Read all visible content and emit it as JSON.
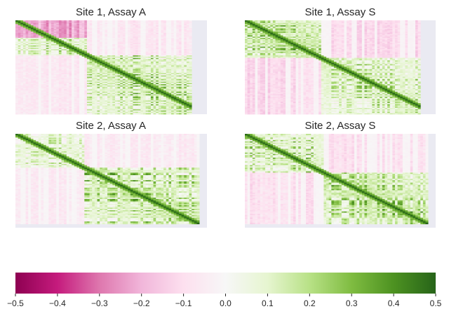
{
  "chart_data": {
    "type": "heatmap",
    "colormap": "PiYG",
    "panels": [
      {
        "title": "Site 1, Assay A",
        "size": 75,
        "blocks": [
          [
            0,
            27
          ],
          [
            28,
            75
          ]
        ],
        "block_strength": [
          0.18,
          0.25
        ],
        "cross_strength": -0.06,
        "missing_cols": [
          69,
          70,
          71,
          72,
          73,
          74
        ],
        "missing_rows_bottom": [],
        "features": "strong negative band rows 0-13, positive diagonal, pink lower band"
      },
      {
        "title": "Site 1, Assay S",
        "size": 75,
        "blocks": [
          [
            0,
            29
          ],
          [
            30,
            75
          ]
        ],
        "block_strength": [
          0.3,
          0.22
        ],
        "cross_strength": -0.1,
        "missing_cols": [
          69,
          70,
          71,
          72,
          73,
          74
        ],
        "missing_rows_bottom": [],
        "features": "dark olive/magenta checker in upper-left block, strong diagonal"
      },
      {
        "title": "Site 2, Assay A",
        "size": 75,
        "blocks": [
          [
            0,
            26
          ],
          [
            27,
            72
          ]
        ],
        "block_strength": [
          0.15,
          0.28
        ],
        "cross_strength": -0.05,
        "missing_cols": [
          72,
          73,
          74
        ],
        "missing_rows_bottom": [
          72,
          73,
          74
        ],
        "features": "pink stripes top-left, olive block lower-right"
      },
      {
        "title": "Site 2, Assay S",
        "size": 75,
        "blocks": [
          [
            0,
            30
          ],
          [
            31,
            72
          ]
        ],
        "block_strength": [
          0.2,
          0.3
        ],
        "cross_strength": -0.08,
        "missing_cols": [
          72,
          73,
          74
        ],
        "missing_rows_bottom": [
          72,
          73,
          74
        ],
        "features": "pink top-left block, olive lower-right block, dark diagonal"
      }
    ],
    "colorbar": {
      "vmin": -0.5,
      "vmax": 0.5,
      "ticks": [
        -0.5,
        -0.4,
        -0.3,
        -0.2,
        -0.1,
        0.0,
        0.1,
        0.2,
        0.3,
        0.4,
        0.5
      ],
      "tick_labels": [
        "−0.5",
        "−0.4",
        "−0.3",
        "−0.2",
        "−0.1",
        "0.0",
        "0.1",
        "0.2",
        "0.3",
        "0.4",
        "0.5"
      ],
      "orientation": "horizontal"
    },
    "missing_color": "#eaeaf2"
  }
}
